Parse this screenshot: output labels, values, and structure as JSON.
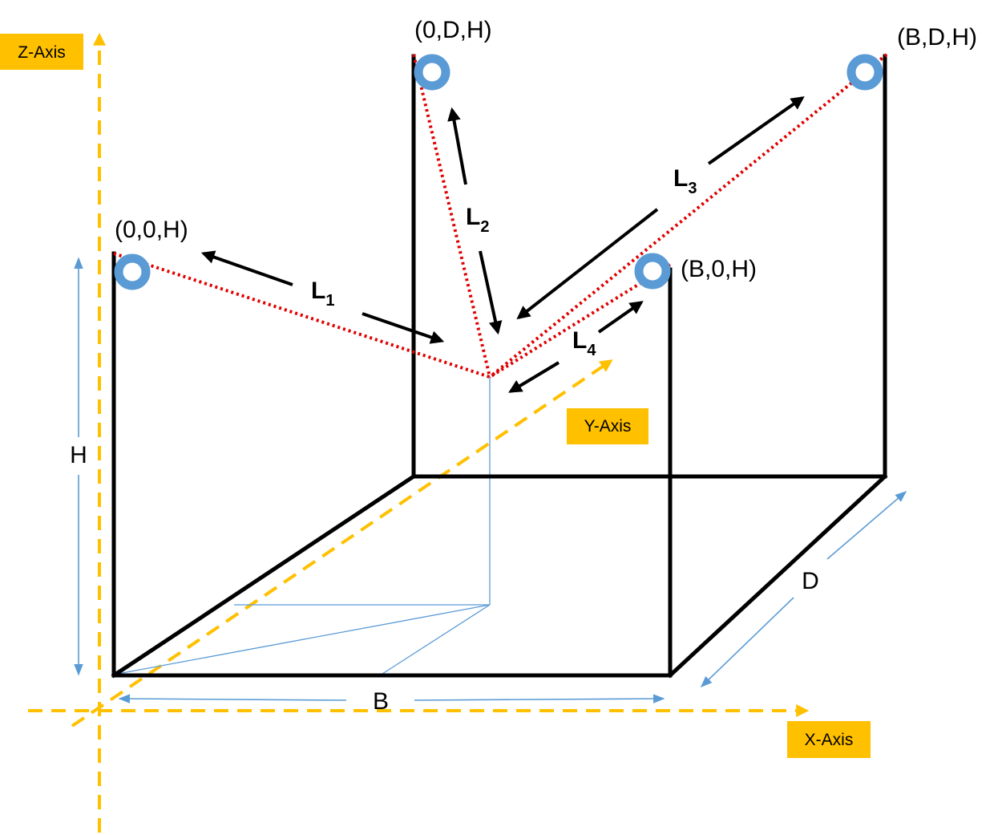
{
  "axes": {
    "z_label": "Z-Axis",
    "y_label": "Y-Axis",
    "x_label": "X-Axis"
  },
  "corners": {
    "origin_top": "(0,0,H)",
    "back_left_top": "(0,D,H)",
    "back_right_top": "(B,D,H)",
    "front_right_top": "(B,0,H)"
  },
  "dimensions": {
    "height": "H",
    "width": "B",
    "depth": "D"
  },
  "cables": [
    {
      "letter": "L",
      "index": "1"
    },
    {
      "letter": "L",
      "index": "2"
    },
    {
      "letter": "L",
      "index": "3"
    },
    {
      "letter": "L",
      "index": "4"
    }
  ],
  "colors": {
    "axis": "#FFC000",
    "cable": "#E00000",
    "ring": "#5B9BD5",
    "frame": "#000000"
  }
}
